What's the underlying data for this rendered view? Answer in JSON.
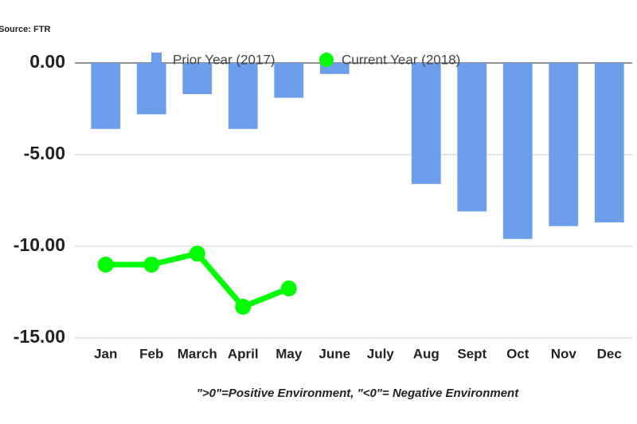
{
  "chart_data": {
    "type": "bar",
    "source": "Source: FTR",
    "footnote": "\">0\"=Positive Environment, \"<0\"= Negative Environment",
    "categories": [
      "Jan",
      "Feb",
      "March",
      "April",
      "May",
      "June",
      "July",
      "Aug",
      "Sept",
      "Oct",
      "Nov",
      "Dec"
    ],
    "series": [
      {
        "name": "Prior Year (2017)",
        "type": "bar",
        "color": "#6d9eeb",
        "values": [
          -3.6,
          -2.8,
          -1.7,
          -3.6,
          -1.9,
          -0.6,
          null,
          -6.6,
          -8.1,
          -9.6,
          -8.9,
          -8.7
        ]
      },
      {
        "name": "Current Year (2018)",
        "type": "line",
        "color": "#00ff00",
        "values": [
          -11.0,
          -11.0,
          -10.4,
          -13.3,
          -12.3,
          null,
          null,
          null,
          null,
          null,
          null,
          null
        ]
      }
    ],
    "ylim": [
      -15,
      0
    ],
    "yticks": [
      {
        "value": 0,
        "label": "0.00"
      },
      {
        "value": -5,
        "label": "-5.00"
      },
      {
        "value": -10,
        "label": "-10.00"
      },
      {
        "value": -15,
        "label": "-15.00"
      }
    ],
    "grid": true
  }
}
